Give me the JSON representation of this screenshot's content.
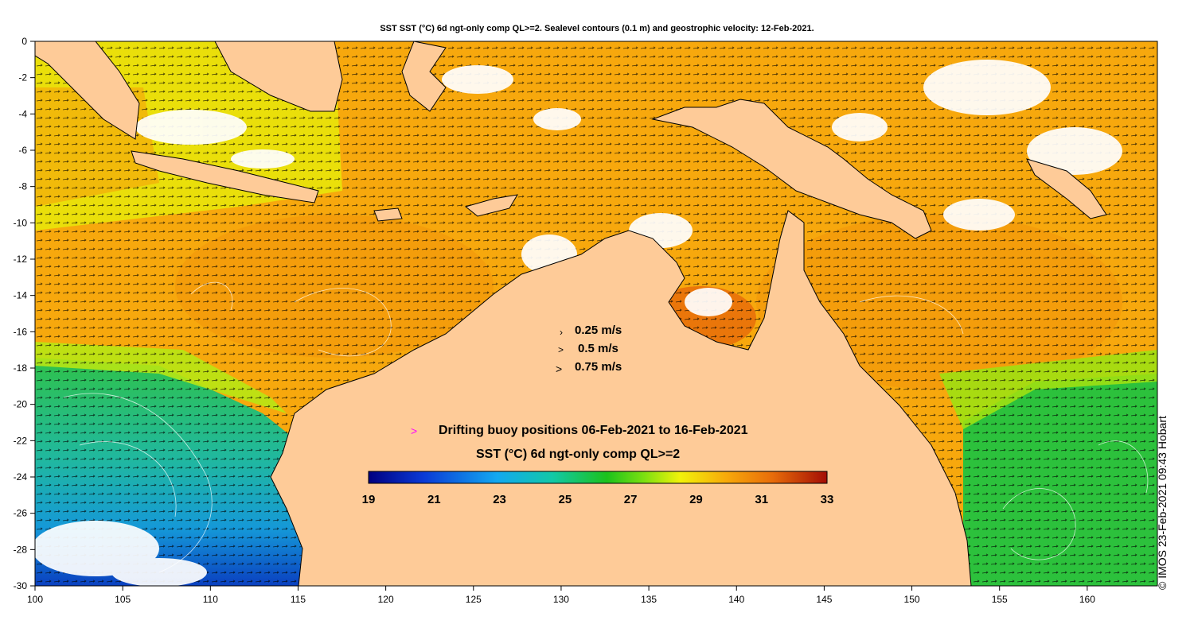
{
  "title": "SST SST (°C) 6d ngt-only comp QL>=2. Sealevel contours (0.1 m) and geostrophic velocity: 12-Feb-2021.",
  "axes": {
    "x_ticks": [
      "100",
      "105",
      "110",
      "115",
      "120",
      "125",
      "130",
      "135",
      "140",
      "145",
      "150",
      "155",
      "160"
    ],
    "y_ticks": [
      "0",
      "-2",
      "-4",
      "-6",
      "-8",
      "-10",
      "-12",
      "-14",
      "-16",
      "-18",
      "-20",
      "-22",
      "-24",
      "-26",
      "-28",
      "-30"
    ],
    "lon_range": [
      100,
      164
    ],
    "lat_range": [
      -30,
      0
    ]
  },
  "velocity_legend": [
    {
      "label": "0.25 m/s",
      "arrow": "›"
    },
    {
      "label": "0.5 m/s",
      "arrow": ">"
    },
    {
      "label": "0.75 m/s",
      "arrow": ">"
    }
  ],
  "buoy_legend": {
    "marker": ">",
    "label": "Drifting buoy positions 06-Feb-2021 to 16-Feb-2021",
    "color": "#ff00ff"
  },
  "colorbar": {
    "title": "SST (°C) 6d ngt-only comp QL>=2",
    "labels": [
      "19",
      "21",
      "23",
      "25",
      "27",
      "29",
      "31",
      "33"
    ],
    "range": [
      19,
      33
    ]
  },
  "copyright": "© IMOS 23-Feb-2021 09:43 Hobart",
  "colors": {
    "land": "#fecb98",
    "cloud": "#ffffff"
  }
}
